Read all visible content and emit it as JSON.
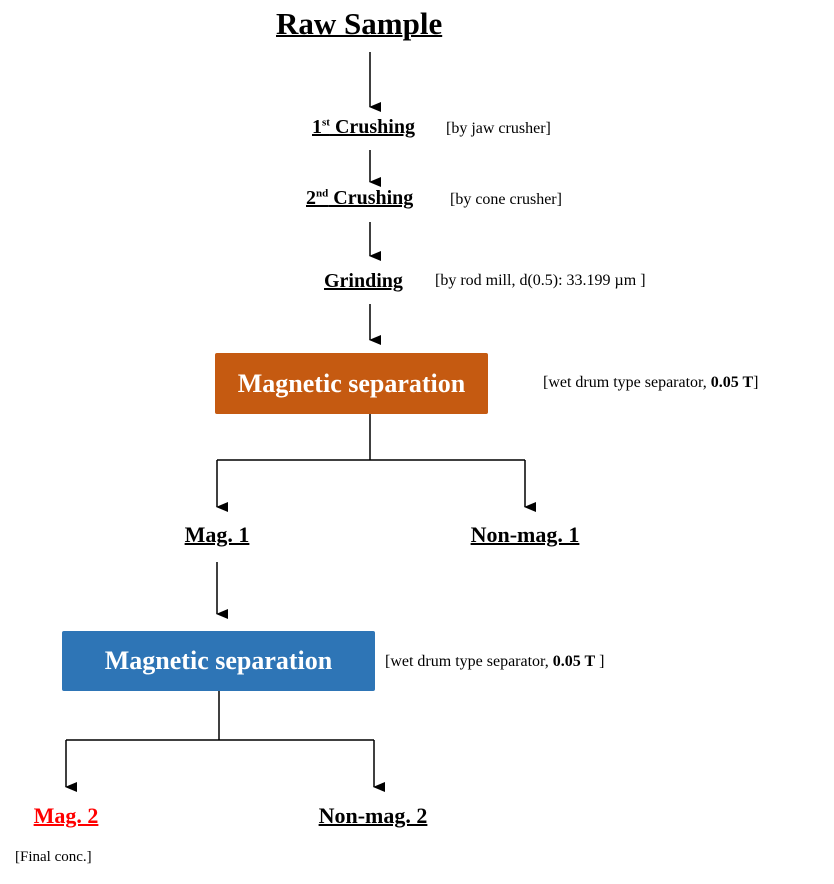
{
  "title": "Raw Sample",
  "steps": [
    {
      "label": "1",
      "sup": "st",
      "rest": " Crushing",
      "note": "[by jaw crusher]"
    },
    {
      "label": "2",
      "sup": "nd",
      "rest": " Crushing",
      "note": "[by cone crusher]"
    },
    {
      "label": "Grinding",
      "note": "[by rod mill, d(0.5): 33.199 µm ]"
    }
  ],
  "separation1": {
    "label": "Magnetic separation",
    "note_prefix": "[wet drum type separator, ",
    "note_bold": "0.05 T",
    "note_suffix": "]",
    "color": "#C55A11"
  },
  "outputs1": {
    "mag": "Mag. 1",
    "nonmag": "Non-mag. 1"
  },
  "separation2": {
    "label": "Magnetic separation",
    "note_prefix": "[wet drum type separator, ",
    "note_bold": "0.05 T",
    "note_suffix": " ]",
    "color": "#2E75B6"
  },
  "outputs2": {
    "mag": "Mag. 2",
    "mag_color": "#FF0000",
    "nonmag": "Non-mag. 2",
    "final_note": "[Final conc.]"
  }
}
